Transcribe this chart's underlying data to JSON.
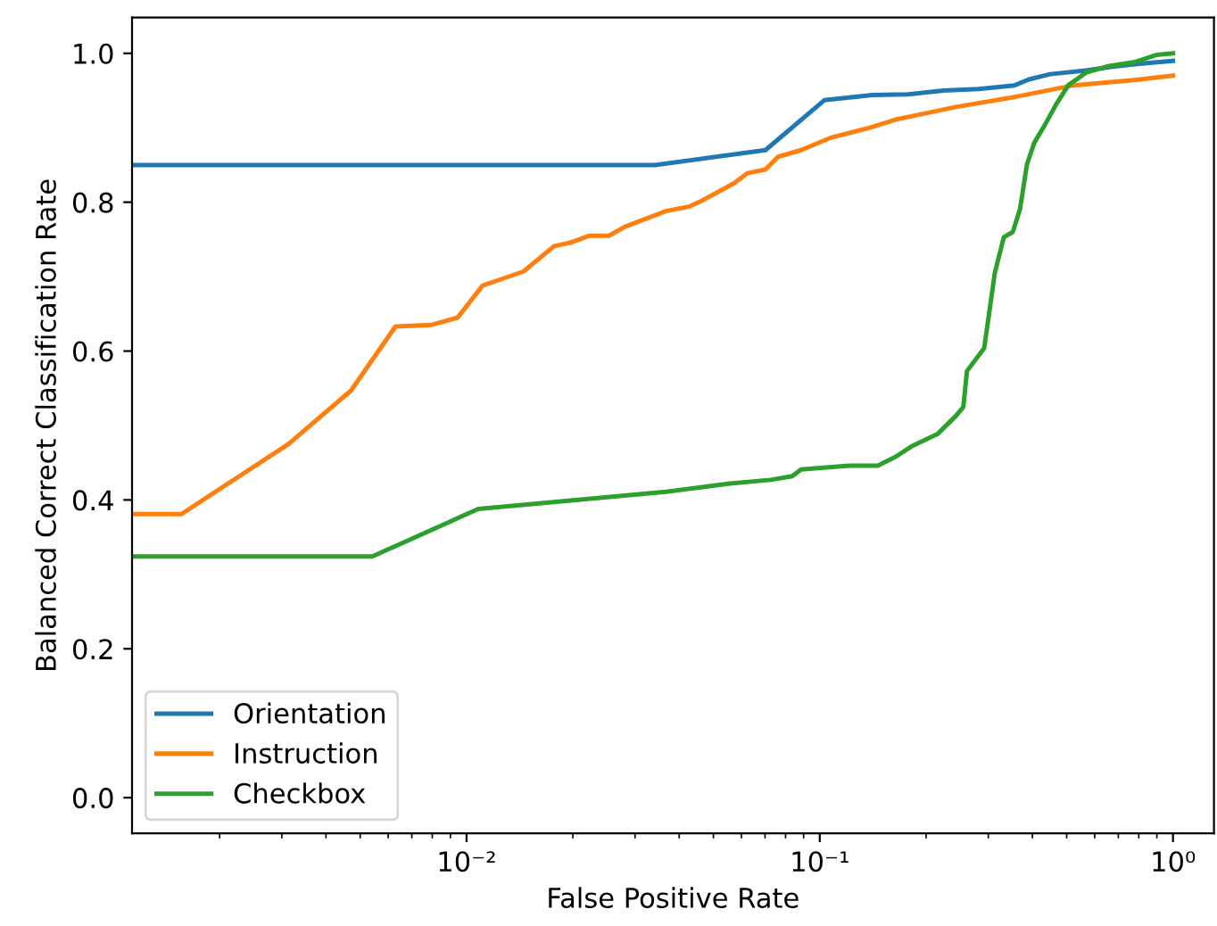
{
  "chart_data": {
    "type": "line",
    "xlabel": "False Positive Rate",
    "ylabel": "Balanced Correct Classification Rate",
    "log": "x",
    "xlim": [
      0.00113,
      1.306
    ],
    "ylim": [
      -0.048,
      1.048
    ],
    "xticks": [
      {
        "value": 0.01,
        "label": "10⁻²"
      },
      {
        "value": 0.1,
        "label": "10⁻¹"
      },
      {
        "value": 1,
        "label": "10⁰"
      }
    ],
    "yticks": [
      {
        "value": 0,
        "label": "0.0"
      },
      {
        "value": 0.2,
        "label": "0.2"
      },
      {
        "value": 0.4,
        "label": "0.4"
      },
      {
        "value": 0.6,
        "label": "0.6"
      },
      {
        "value": 0.8,
        "label": "0.8"
      },
      {
        "value": 1,
        "label": "1.0"
      }
    ],
    "grid": false,
    "legend": "bottom left",
    "marker": "none",
    "line_style": "solid",
    "series": [
      {
        "name": "Orientation",
        "color": "#1f77b4",
        "x": [
          0.00113,
          0.0342,
          0.0702,
          0.103,
          0.141,
          0.178,
          0.224,
          0.282,
          0.356,
          0.391,
          0.449,
          0.567,
          0.674,
          0.802,
          1.0
        ],
        "values": [
          0.85,
          0.85,
          0.87,
          0.937,
          0.944,
          0.945,
          0.95,
          0.952,
          0.957,
          0.965,
          0.972,
          0.977,
          0.982,
          0.986,
          0.99
        ]
      },
      {
        "name": "Instruction",
        "color": "#ff7f0e",
        "x": [
          0.00113,
          0.00156,
          0.00313,
          0.00471,
          0.00629,
          0.00792,
          0.00944,
          0.0111,
          0.0128,
          0.0145,
          0.0177,
          0.0198,
          0.0223,
          0.0253,
          0.0281,
          0.0367,
          0.0426,
          0.0468,
          0.057,
          0.0625,
          0.0702,
          0.0762,
          0.0885,
          0.108,
          0.136,
          0.164,
          0.243,
          0.344,
          0.523,
          0.775,
          1.0
        ],
        "values": [
          0.381,
          0.381,
          0.475,
          0.547,
          0.633,
          0.635,
          0.645,
          0.688,
          0.698,
          0.707,
          0.741,
          0.746,
          0.755,
          0.755,
          0.767,
          0.788,
          0.794,
          0.803,
          0.825,
          0.839,
          0.844,
          0.861,
          0.87,
          0.887,
          0.899,
          0.911,
          0.928,
          0.94,
          0.957,
          0.964,
          0.97
        ]
      },
      {
        "name": "Checkbox",
        "color": "#2ca02c",
        "x": [
          0.00113,
          0.00541,
          0.0108,
          0.0367,
          0.0557,
          0.0727,
          0.0836,
          0.0885,
          0.121,
          0.146,
          0.164,
          0.182,
          0.216,
          0.243,
          0.255,
          0.261,
          0.292,
          0.303,
          0.313,
          0.332,
          0.352,
          0.369,
          0.386,
          0.405,
          0.434,
          0.465,
          0.505,
          0.567,
          0.659,
          0.775,
          0.901,
          1.0
        ],
        "values": [
          0.324,
          0.324,
          0.388,
          0.411,
          0.422,
          0.427,
          0.432,
          0.441,
          0.446,
          0.446,
          0.458,
          0.472,
          0.489,
          0.513,
          0.525,
          0.573,
          0.604,
          0.657,
          0.705,
          0.753,
          0.76,
          0.791,
          0.851,
          0.88,
          0.904,
          0.93,
          0.957,
          0.974,
          0.983,
          0.988,
          0.998,
          1.0
        ]
      }
    ]
  }
}
